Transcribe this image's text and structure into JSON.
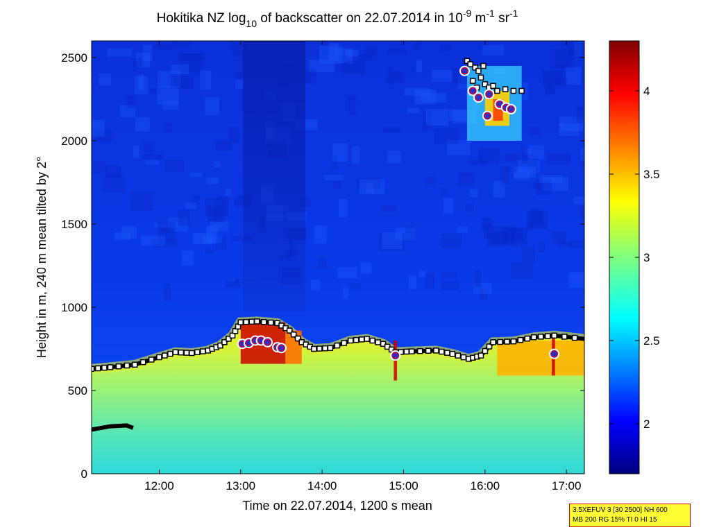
{
  "chart_data": {
    "type": "heatmap",
    "title_parts": {
      "a": "Hokitika NZ log",
      "sub": "10",
      "b": " of backscatter on 22.07.2014 in 10",
      "sup1": "-9",
      "c": " m",
      "sup2": "-1",
      "d": " sr",
      "sup3": "-1"
    },
    "xlabel": "Time on 22.07.2014, 1200 s mean",
    "ylabel": "Height in m, 240 m mean tilted by 2°",
    "xlim": [
      11.17,
      17.22
    ],
    "ylim": [
      0,
      2600
    ],
    "x_ticks": [
      {
        "value": 12,
        "label": "12:00"
      },
      {
        "value": 13,
        "label": "13:00"
      },
      {
        "value": 14,
        "label": "14:00"
      },
      {
        "value": 15,
        "label": "15:00"
      },
      {
        "value": 16,
        "label": "16:00"
      },
      {
        "value": 17,
        "label": "17:00"
      }
    ],
    "y_ticks": [
      {
        "value": 0,
        "label": "0"
      },
      {
        "value": 500,
        "label": "500"
      },
      {
        "value": 1000,
        "label": "1000"
      },
      {
        "value": 1500,
        "label": "1500"
      },
      {
        "value": 2000,
        "label": "2000"
      },
      {
        "value": 2500,
        "label": "2500"
      }
    ],
    "colorbar": {
      "range": [
        1.7,
        4.3
      ],
      "ticks": [
        {
          "value": 2,
          "label": "2"
        },
        {
          "value": 2.5,
          "label": "2.5"
        },
        {
          "value": 3,
          "label": "3"
        },
        {
          "value": 3.5,
          "label": "3.5"
        },
        {
          "value": 4,
          "label": "4"
        }
      ],
      "colormap": "jet"
    },
    "boundary_layer_top": [
      [
        11.17,
        630
      ],
      [
        11.4,
        640
      ],
      [
        11.7,
        655
      ],
      [
        12.0,
        700
      ],
      [
        12.2,
        730
      ],
      [
        12.4,
        725
      ],
      [
        12.6,
        740
      ],
      [
        12.75,
        770
      ],
      [
        12.9,
        830
      ],
      [
        13.0,
        910
      ],
      [
        13.2,
        915
      ],
      [
        13.45,
        905
      ],
      [
        13.6,
        860
      ],
      [
        13.75,
        790
      ],
      [
        13.9,
        750
      ],
      [
        14.1,
        755
      ],
      [
        14.35,
        800
      ],
      [
        14.55,
        810
      ],
      [
        14.75,
        780
      ],
      [
        14.9,
        730
      ],
      [
        15.1,
        735
      ],
      [
        15.4,
        740
      ],
      [
        15.6,
        720
      ],
      [
        15.8,
        690
      ],
      [
        15.95,
        710
      ],
      [
        16.1,
        790
      ],
      [
        16.35,
        795
      ],
      [
        16.6,
        820
      ],
      [
        16.85,
        830
      ],
      [
        17.22,
        810
      ]
    ],
    "low_layer": [
      [
        11.17,
        265
      ],
      [
        11.4,
        285
      ],
      [
        11.6,
        290
      ],
      [
        11.68,
        275
      ]
    ],
    "cloud_base_markers": [
      [
        13.02,
        780
      ],
      [
        13.1,
        785
      ],
      [
        13.18,
        800
      ],
      [
        13.25,
        800
      ],
      [
        13.33,
        790
      ],
      [
        13.45,
        760
      ],
      [
        13.5,
        755
      ],
      [
        14.9,
        710
      ],
      [
        16.85,
        720
      ],
      [
        15.75,
        2420
      ],
      [
        15.85,
        2300
      ],
      [
        15.92,
        2260
      ],
      [
        16.05,
        2280
      ],
      [
        16.03,
        2150
      ],
      [
        16.18,
        2220
      ],
      [
        16.26,
        2200
      ],
      [
        16.32,
        2190
      ]
    ],
    "upper_squares": [
      [
        15.78,
        2480
      ],
      [
        15.82,
        2460
      ],
      [
        15.88,
        2440
      ],
      [
        15.92,
        2420
      ],
      [
        15.98,
        2450
      ],
      [
        15.85,
        2360
      ],
      [
        15.95,
        2380
      ],
      [
        16.0,
        2340
      ],
      [
        16.05,
        2320
      ],
      [
        16.1,
        2330
      ],
      [
        16.15,
        2300
      ],
      [
        16.25,
        2310
      ],
      [
        16.35,
        2300
      ],
      [
        16.45,
        2300
      ],
      [
        15.9,
        2320
      ]
    ],
    "info_box": {
      "line1": "3.5XEFUV 3 [30 2500] NH 600",
      "line2": "MB 200 RG 15% TI 0 HI 15"
    }
  }
}
